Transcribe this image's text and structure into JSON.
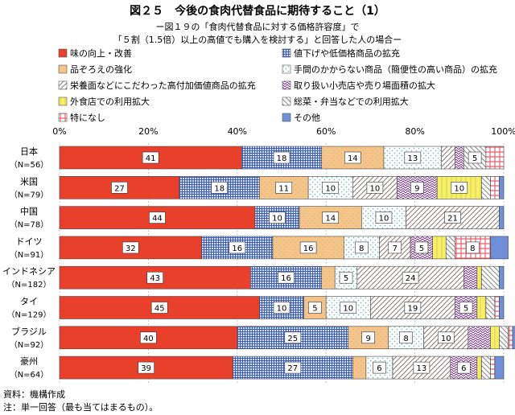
{
  "title": "図２５　今後の食肉代替食品に期待すること（1）",
  "subtitle1": "ー図１９の「食肉代替食品に対する価格許容度」で",
  "subtitle2": "「５割（1.5倍）以上の高値でも購入を検討する」と回答した人の場合ー",
  "source": "資料：機構作成",
  "note": "注：単一回答（最も当てはまるもの）。",
  "colors": {
    "taste": "#e8402a",
    "price": "#3b5fb8",
    "variety": "#f3c58a",
    "easy": "#66b8b0",
    "value": "#9a4a70",
    "store": "#7a3a8a",
    "eatout": "#f4f06a",
    "deli": "#8a7a70",
    "none": "#e8606a",
    "other": "#6f8fd8"
  },
  "chart_data": {
    "type": "bar",
    "orientation": "horizontal",
    "stacked": true,
    "percent": true,
    "xlim": [
      0,
      100
    ],
    "xticks": [
      "0%",
      "20%",
      "40%",
      "60%",
      "80%",
      "100%"
    ],
    "categories": [
      {
        "name": "日本",
        "n": "（N=56）"
      },
      {
        "name": "米国",
        "n": "（N=79）"
      },
      {
        "name": "中国",
        "n": "（N=78）"
      },
      {
        "name": "ドイツ",
        "n": "（N=91）"
      },
      {
        "name": "インドネシア",
        "n": "（N=182）"
      },
      {
        "name": "タイ",
        "n": "（N=129）"
      },
      {
        "name": "ブラジル",
        "n": "（N=92）"
      },
      {
        "name": "豪州",
        "n": "（N=64）"
      }
    ],
    "series": [
      {
        "key": "taste",
        "name": "味の向上・改善",
        "values": [
          41,
          27,
          44,
          32,
          43,
          45,
          40,
          39
        ]
      },
      {
        "key": "price",
        "name": "値下げや低価格商品の拡充",
        "values": [
          18,
          18,
          10,
          16,
          16,
          10,
          25,
          27
        ]
      },
      {
        "key": "variety",
        "name": "品ぞろえの強化",
        "values": [
          14,
          11,
          14,
          16,
          3,
          5,
          9,
          3
        ]
      },
      {
        "key": "easy",
        "name": "手間のかからない商品（簡便性の高い商品）の拡充",
        "values": [
          13,
          10,
          10,
          8,
          5,
          10,
          8,
          6
        ]
      },
      {
        "key": "value",
        "name": "栄養面などにこだわった高付加価値商品の拡充",
        "values": [
          3,
          10,
          21,
          7,
          24,
          19,
          10,
          13
        ]
      },
      {
        "key": "store",
        "name": "取り扱い小売店や売り場面積の拡大",
        "values": [
          2,
          9,
          0,
          5,
          3,
          5,
          5,
          6
        ]
      },
      {
        "key": "eatout",
        "name": "外食店での利用拡大",
        "values": [
          0,
          10,
          0,
          3,
          1,
          2,
          2,
          1
        ]
      },
      {
        "key": "deli",
        "name": "総菜・弁当などでの利用拡大",
        "values": [
          5,
          2,
          0,
          2,
          4,
          2,
          2,
          2
        ]
      },
      {
        "key": "none",
        "name": "特になし",
        "values": [
          4,
          2,
          0,
          8,
          0,
          1,
          1,
          1
        ]
      },
      {
        "key": "other",
        "name": "その他",
        "values": [
          0,
          1,
          1,
          4,
          1,
          1,
          1,
          2
        ]
      }
    ],
    "data_labels": [
      [
        41,
        18,
        14,
        13,
        null,
        null,
        null,
        5,
        null,
        null
      ],
      [
        27,
        18,
        11,
        10,
        10,
        9,
        10,
        null,
        null,
        null
      ],
      [
        44,
        10,
        14,
        10,
        21,
        null,
        null,
        null,
        null,
        null
      ],
      [
        32,
        16,
        16,
        8,
        7,
        5,
        null,
        null,
        8,
        null
      ],
      [
        43,
        16,
        null,
        5,
        24,
        null,
        null,
        null,
        null,
        null
      ],
      [
        45,
        10,
        5,
        10,
        19,
        5,
        null,
        null,
        null,
        null
      ],
      [
        40,
        25,
        9,
        8,
        10,
        null,
        null,
        null,
        null,
        null
      ],
      [
        39,
        27,
        null,
        6,
        13,
        6,
        null,
        null,
        null,
        null
      ]
    ]
  }
}
